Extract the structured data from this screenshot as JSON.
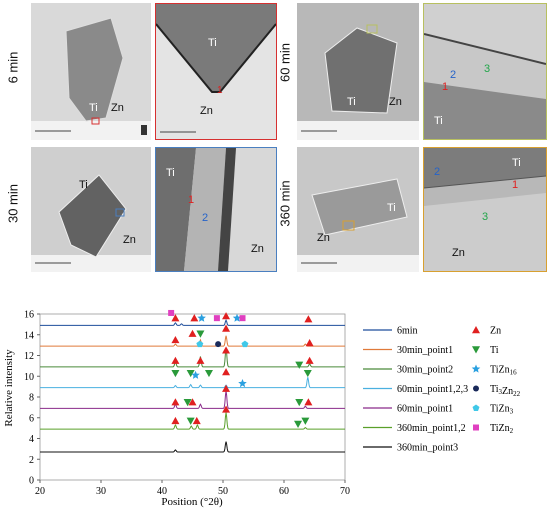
{
  "micrographs": {
    "rows": [
      {
        "time": "6 min",
        "left_labels": [
          "Ti",
          "Zn"
        ],
        "zoom_labels": [
          "Ti",
          "Zn"
        ],
        "zoom_points": [
          "1"
        ]
      },
      {
        "time": "30 min",
        "left_labels": [
          "Ti",
          "Zn"
        ],
        "zoom_labels": [
          "Ti",
          "Zn"
        ],
        "zoom_points": [
          "1",
          "2"
        ]
      }
    ],
    "rows_right": [
      {
        "time": "60 min",
        "left_labels": [
          "Ti",
          "Zn"
        ],
        "zoom_labels": [
          "Ti"
        ],
        "zoom_points": [
          "1",
          "2",
          "3"
        ]
      },
      {
        "time": "360 min",
        "left_labels": [
          "Ti",
          "Zn"
        ],
        "zoom_labels": [
          "Ti",
          "Zn"
        ],
        "zoom_points": [
          "1",
          "2",
          "3"
        ]
      }
    ],
    "box_colors": {
      "6 min": "#d63030",
      "30 min": "#4a7fc0",
      "60 min": "#b8c060",
      "360 min": "#d8a030"
    }
  },
  "chart_data": {
    "type": "line",
    "xlabel": "Position (°2θ)",
    "ylabel": "Relative intensity",
    "xlim": [
      20,
      70
    ],
    "ylim": [
      0,
      16
    ],
    "xticks": [
      20,
      30,
      40,
      50,
      60,
      70
    ],
    "yticks": [
      0,
      2,
      4,
      6,
      8,
      10,
      12,
      14,
      16
    ],
    "series": [
      {
        "name": "6min",
        "color": "#1f4e9c",
        "baseline": 14.9,
        "peaks": [
          [
            42.2,
            0.25
          ],
          [
            43.2,
            0.15
          ],
          [
            50.5,
            0.5
          ]
        ]
      },
      {
        "name": "30min_point1",
        "color": "#e07a3a",
        "baseline": 12.9,
        "peaks": [
          [
            42.2,
            0.2
          ],
          [
            46.3,
            0.6
          ],
          [
            50.5,
            1.0
          ],
          [
            63.5,
            0.2
          ]
        ]
      },
      {
        "name": "30min_point2",
        "color": "#4a8a3a",
        "baseline": 10.9,
        "peaks": [
          [
            42.2,
            0.5
          ],
          [
            46.3,
            1.0
          ],
          [
            50.5,
            1.8
          ],
          [
            64.2,
            0.3
          ]
        ]
      },
      {
        "name": "60min_point1,2,3",
        "color": "#4ab0e0",
        "baseline": 8.9,
        "peaks": [
          [
            42.2,
            0.2
          ],
          [
            44.7,
            0.3
          ],
          [
            46.3,
            0.25
          ],
          [
            50.5,
            0.25
          ],
          [
            63.9,
            1.0
          ]
        ]
      },
      {
        "name": "60min_point1",
        "color": "#8a2a8a",
        "baseline": 6.9,
        "peaks": [
          [
            42.2,
            0.4
          ],
          [
            46.3,
            0.4
          ],
          [
            50.5,
            1.7
          ],
          [
            63.5,
            0.2
          ]
        ]
      },
      {
        "name": "360min_point1,2",
        "color": "#5aa02a",
        "baseline": 4.9,
        "peaks": [
          [
            42.2,
            0.4
          ],
          [
            44.8,
            0.3
          ],
          [
            45.8,
            0.4
          ],
          [
            50.5,
            1.6
          ],
          [
            63.5,
            0.15
          ]
        ]
      },
      {
        "name": "360min_point3",
        "color": "#111111",
        "baseline": 2.7,
        "peaks": [
          [
            42.2,
            0.2
          ],
          [
            50.5,
            1.0
          ]
        ]
      }
    ],
    "legend_phases": [
      "Zn",
      "Ti",
      "TiZn16",
      "Ti3Zn22",
      "TiZn3",
      "TiZn2"
    ],
    "legend_phase_subs": [
      {
        "base": "Zn",
        "sub": ""
      },
      {
        "base": "Ti",
        "sub": ""
      },
      {
        "base": "TiZn",
        "sub": "16"
      },
      {
        "base": "Ti",
        "sub": "3",
        "mid": "Zn",
        "sub2": "22"
      },
      {
        "base": "TiZn",
        "sub": "3"
      },
      {
        "base": "TiZn",
        "sub": "2"
      }
    ],
    "phase_colors": {
      "Zn": "#e02020",
      "Ti": "#2a9a3a",
      "TiZn16": "#2aa0e0",
      "Ti3Zn22": "#1a2a5a",
      "TiZn3": "#40c8e8",
      "TiZn2": "#e040c0"
    },
    "markers": [
      {
        "phase": "TiZn2",
        "x": 41.5,
        "y": 16.1
      },
      {
        "phase": "Zn",
        "x": 42.2,
        "y": 15.6
      },
      {
        "phase": "Zn",
        "x": 45.3,
        "y": 15.6
      },
      {
        "phase": "TiZn16",
        "x": 46.5,
        "y": 15.6
      },
      {
        "phase": "TiZn2",
        "x": 49.0,
        "y": 15.6
      },
      {
        "phase": "Zn",
        "x": 50.5,
        "y": 15.8
      },
      {
        "phase": "TiZn16",
        "x": 52.3,
        "y": 15.6
      },
      {
        "phase": "TiZn2",
        "x": 53.2,
        "y": 15.6
      },
      {
        "phase": "Zn",
        "x": 64.0,
        "y": 15.5
      },
      {
        "phase": "Zn",
        "x": 42.2,
        "y": 13.5
      },
      {
        "phase": "Ti",
        "x": 46.3,
        "y": 14.1
      },
      {
        "phase": "Zn",
        "x": 45.0,
        "y": 14.1
      },
      {
        "phase": "Zn",
        "x": 50.5,
        "y": 14.6
      },
      {
        "phase": "TiZn3",
        "x": 46.2,
        "y": 13.1
      },
      {
        "phase": "Ti3Zn22",
        "x": 49.2,
        "y": 13.1
      },
      {
        "phase": "TiZn3",
        "x": 53.6,
        "y": 13.1
      },
      {
        "phase": "Zn",
        "x": 64.2,
        "y": 13.2
      },
      {
        "phase": "Zn",
        "x": 42.2,
        "y": 11.5
      },
      {
        "phase": "Zn",
        "x": 46.3,
        "y": 11.5
      },
      {
        "phase": "Zn",
        "x": 50.5,
        "y": 12.5
      },
      {
        "phase": "Zn",
        "x": 64.2,
        "y": 11.5
      },
      {
        "phase": "Ti",
        "x": 42.2,
        "y": 10.3
      },
      {
        "phase": "Ti",
        "x": 44.7,
        "y": 10.3
      },
      {
        "phase": "TiZn16",
        "x": 45.5,
        "y": 10.1
      },
      {
        "phase": "Ti",
        "x": 47.7,
        "y": 10.3
      },
      {
        "phase": "Zn",
        "x": 50.5,
        "y": 10.4
      },
      {
        "phase": "TiZn16",
        "x": 53.2,
        "y": 9.3
      },
      {
        "phase": "Ti",
        "x": 62.5,
        "y": 11.1
      },
      {
        "phase": "Ti",
        "x": 63.9,
        "y": 10.3
      },
      {
        "phase": "Zn",
        "x": 42.2,
        "y": 7.5
      },
      {
        "phase": "Zn",
        "x": 45.0,
        "y": 7.5
      },
      {
        "phase": "Ti",
        "x": 44.2,
        "y": 7.5
      },
      {
        "phase": "Zn",
        "x": 50.5,
        "y": 8.8
      },
      {
        "phase": "Zn",
        "x": 64.0,
        "y": 7.5
      },
      {
        "phase": "Ti",
        "x": 62.5,
        "y": 7.5
      },
      {
        "phase": "Zn",
        "x": 42.2,
        "y": 5.7
      },
      {
        "phase": "Ti",
        "x": 44.7,
        "y": 5.7
      },
      {
        "phase": "Zn",
        "x": 50.5,
        "y": 6.8
      },
      {
        "phase": "Ti",
        "x": 62.3,
        "y": 5.4
      },
      {
        "phase": "Ti",
        "x": 63.5,
        "y": 5.7
      },
      {
        "phase": "Zn",
        "x": 45.7,
        "y": 5.7
      }
    ]
  }
}
